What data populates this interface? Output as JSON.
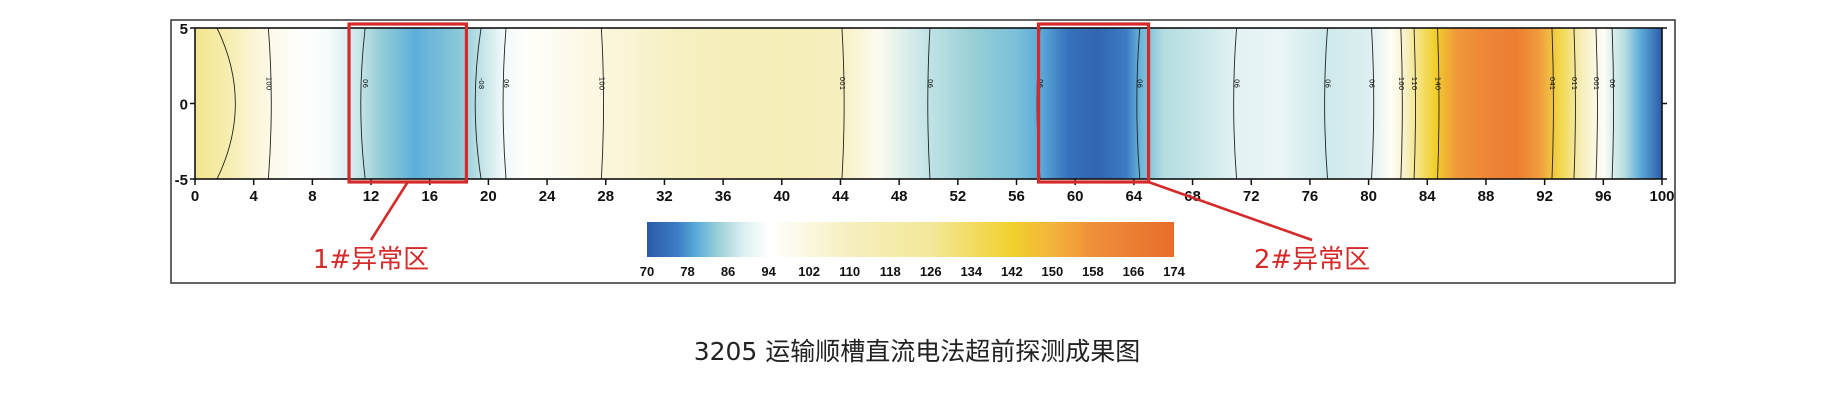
{
  "chart_data": {
    "type": "heatmap",
    "x_ticks": [
      0,
      4,
      8,
      12,
      16,
      20,
      24,
      28,
      32,
      36,
      40,
      44,
      48,
      52,
      56,
      60,
      64,
      68,
      72,
      76,
      80,
      84,
      88,
      92,
      96,
      100
    ],
    "y_ticks": [
      5,
      0,
      -5
    ],
    "xlim": [
      0,
      100
    ],
    "ylim": [
      -5,
      5
    ],
    "profile": [
      {
        "x": 0,
        "v": 128
      },
      {
        "x": 2,
        "v": 118
      },
      {
        "x": 5,
        "v": 100
      },
      {
        "x": 7,
        "v": 95
      },
      {
        "x": 9,
        "v": 93
      },
      {
        "x": 11,
        "v": 88
      },
      {
        "x": 12.5,
        "v": 84
      },
      {
        "x": 15,
        "v": 80
      },
      {
        "x": 18,
        "v": 83
      },
      {
        "x": 19.5,
        "v": 87
      },
      {
        "x": 21,
        "v": 92
      },
      {
        "x": 22.5,
        "v": 95
      },
      {
        "x": 25,
        "v": 98
      },
      {
        "x": 27.5,
        "v": 102
      },
      {
        "x": 32,
        "v": 108
      },
      {
        "x": 36,
        "v": 112
      },
      {
        "x": 40,
        "v": 113
      },
      {
        "x": 44,
        "v": 110
      },
      {
        "x": 46.5,
        "v": 98
      },
      {
        "x": 50,
        "v": 87
      },
      {
        "x": 53,
        "v": 84
      },
      {
        "x": 56,
        "v": 82
      },
      {
        "x": 57.5,
        "v": 80
      },
      {
        "x": 59.5,
        "v": 74
      },
      {
        "x": 61.5,
        "v": 72
      },
      {
        "x": 63.5,
        "v": 76
      },
      {
        "x": 64.5,
        "v": 81
      },
      {
        "x": 66,
        "v": 86
      },
      {
        "x": 69,
        "v": 88
      },
      {
        "x": 71,
        "v": 90
      },
      {
        "x": 74,
        "v": 91
      },
      {
        "x": 77,
        "v": 88
      },
      {
        "x": 80,
        "v": 89
      },
      {
        "x": 81.5,
        "v": 96
      },
      {
        "x": 82.5,
        "v": 108
      },
      {
        "x": 84.5,
        "v": 142
      },
      {
        "x": 86,
        "v": 156
      },
      {
        "x": 88,
        "v": 162
      },
      {
        "x": 90,
        "v": 166
      },
      {
        "x": 91.5,
        "v": 156
      },
      {
        "x": 93,
        "v": 138
      },
      {
        "x": 94.5,
        "v": 112
      },
      {
        "x": 96,
        "v": 96
      },
      {
        "x": 97.5,
        "v": 86
      },
      {
        "x": 98.5,
        "v": 80
      },
      {
        "x": 100,
        "v": 70
      }
    ],
    "contours": [
      {
        "x": 1.5,
        "label": "",
        "curve": 2.5
      },
      {
        "x": 5,
        "label": "100",
        "curve": 0.4
      },
      {
        "x": 11.6,
        "label": "06",
        "curve": -0.6
      },
      {
        "x": 19.5,
        "label": "-08",
        "curve": -0.8
      },
      {
        "x": 21.2,
        "label": "06",
        "curve": -0.4
      },
      {
        "x": 27.7,
        "label": "100",
        "curve": 0.3
      },
      {
        "x": 44.1,
        "label": "001",
        "curve": 0.3
      },
      {
        "x": 50.1,
        "label": "06",
        "curve": -0.3
      },
      {
        "x": 57.6,
        "label": "06",
        "curve": -0.4
      },
      {
        "x": 64.4,
        "label": "06",
        "curve": -0.4
      },
      {
        "x": 71,
        "label": "06",
        "curve": -0.4
      },
      {
        "x": 77.2,
        "label": "06",
        "curve": -0.4
      },
      {
        "x": 80.2,
        "label": "06",
        "curve": 0.3
      },
      {
        "x": 82.2,
        "label": "100",
        "curve": 0.2
      },
      {
        "x": 83.1,
        "label": "110",
        "curve": 0.2
      },
      {
        "x": 84.7,
        "label": "140",
        "curve": 0.2
      },
      {
        "x": 92.5,
        "label": "041",
        "curve": 0.2
      },
      {
        "x": 94,
        "label": "011",
        "curve": 0.2
      },
      {
        "x": 95.5,
        "label": "001",
        "curve": 0.2
      },
      {
        "x": 96.6,
        "label": "06",
        "curve": 0.2
      }
    ],
    "colorbar": {
      "ticks": [
        70,
        78,
        86,
        94,
        102,
        110,
        118,
        126,
        134,
        142,
        150,
        158,
        166,
        174
      ],
      "range": [
        70,
        174
      ],
      "stops": [
        {
          "v": 70,
          "color": "#2b5aa8"
        },
        {
          "v": 76,
          "color": "#3d7cc4"
        },
        {
          "v": 80,
          "color": "#5eaedb"
        },
        {
          "v": 84,
          "color": "#98d0d6"
        },
        {
          "v": 89,
          "color": "#dceff0"
        },
        {
          "v": 94,
          "color": "#ffffff"
        },
        {
          "v": 110,
          "color": "#f6efbe"
        },
        {
          "v": 126,
          "color": "#f3e89a"
        },
        {
          "v": 142,
          "color": "#f1d02c"
        },
        {
          "v": 150,
          "color": "#f2b43a"
        },
        {
          "v": 158,
          "color": "#ef8f3a"
        },
        {
          "v": 174,
          "color": "#e86c2a"
        }
      ]
    },
    "anomalies": [
      {
        "label": "1#异常区",
        "x_range": [
          10.5,
          18.5
        ]
      },
      {
        "label": "2#异常区",
        "x_range": [
          57.5,
          65
        ]
      }
    ]
  },
  "caption": "3205 运输顺槽直流电法超前探测成果图",
  "colors": {
    "frame": "#333333",
    "anomaly": "#d42a2a"
  }
}
